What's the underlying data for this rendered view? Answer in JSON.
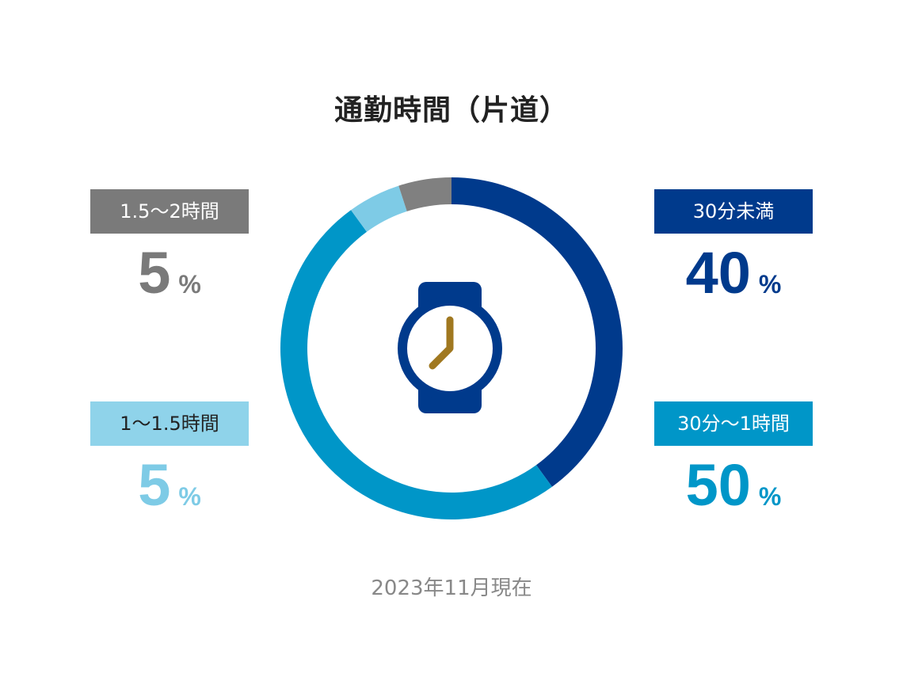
{
  "title": "通勤時間（片道）",
  "footnote": "2023年11月現在",
  "chart_data": {
    "type": "pie",
    "title": "通勤時間（片道）",
    "donut": true,
    "categories": [
      "30分未満",
      "30分〜1時間",
      "1〜1.5時間",
      "1.5〜2時間"
    ],
    "values": [
      40,
      50,
      5,
      5
    ],
    "unit": "%",
    "colors": [
      "#003a8c",
      "#0096c8",
      "#7ecbe6",
      "#808080"
    ],
    "center_icon": "wristwatch-icon"
  },
  "legend": {
    "under30": {
      "label": "30分未満",
      "value": "40",
      "unit": "%",
      "color": "#003a8c",
      "text_color": "#003a8c"
    },
    "from30to60": {
      "label": "30分〜1時間",
      "value": "50",
      "unit": "%",
      "color": "#0096c8",
      "text_color": "#0096c8"
    },
    "from60to90": {
      "label": "1〜1.5時間",
      "value": "5",
      "unit": "%",
      "color": "#8fd3ea",
      "text_color": "#7ecbe6"
    },
    "from90to120": {
      "label": "1.5〜2時間",
      "value": "5",
      "unit": "%",
      "color": "#7a7a7a",
      "text_color": "#7a7a7a"
    }
  },
  "icon": {
    "name": "wristwatch-icon",
    "body_color": "#003a8c",
    "hands_color": "#a07820"
  }
}
